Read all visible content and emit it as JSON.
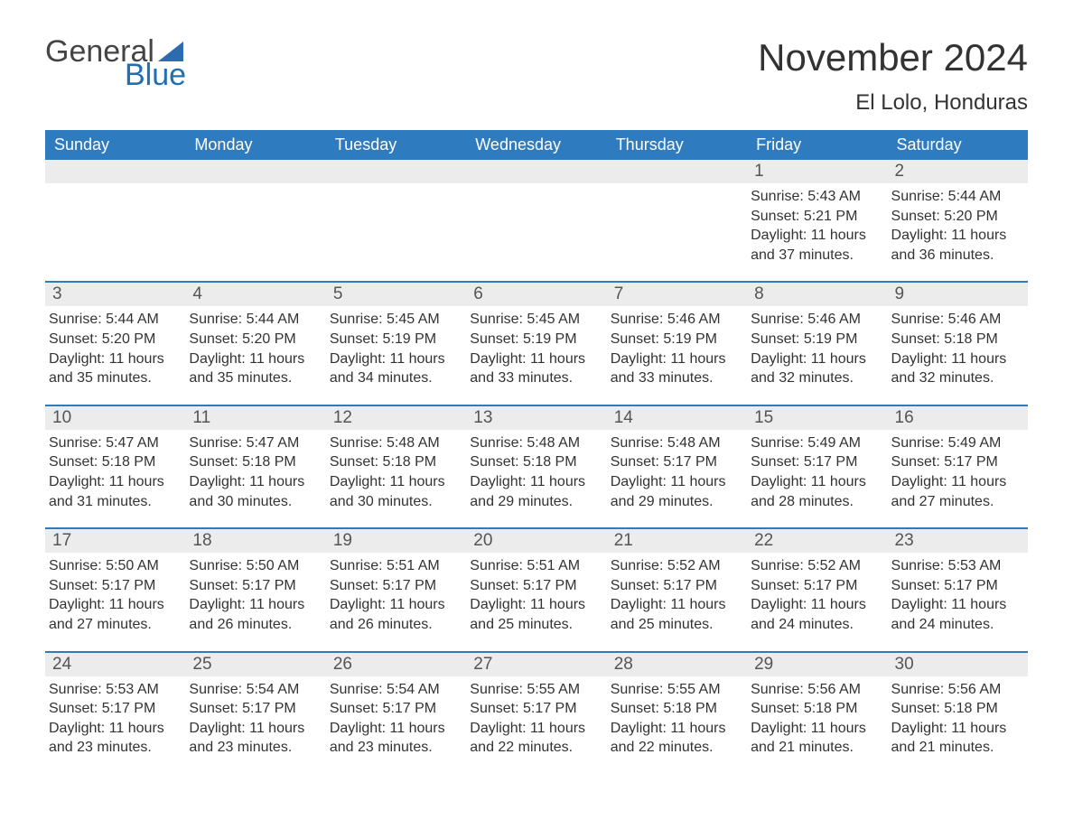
{
  "logo": {
    "word1": "General",
    "word2": "Blue",
    "brand_color": "#2f7bbf",
    "text_color": "#444444"
  },
  "title": "November 2024",
  "location": "El Lolo, Honduras",
  "colors": {
    "header_bg": "#2f7bbf",
    "header_text": "#ffffff",
    "day_num_bg": "#ececec",
    "week_border": "#2f7bbf",
    "body_text": "#333333",
    "page_bg": "#ffffff"
  },
  "dow": [
    "Sunday",
    "Monday",
    "Tuesday",
    "Wednesday",
    "Thursday",
    "Friday",
    "Saturday"
  ],
  "weeks": [
    [
      {
        "day": null
      },
      {
        "day": null
      },
      {
        "day": null
      },
      {
        "day": null
      },
      {
        "day": null
      },
      {
        "day": 1,
        "sunrise": "5:43 AM",
        "sunset": "5:21 PM",
        "daylight": "11 hours and 37 minutes."
      },
      {
        "day": 2,
        "sunrise": "5:44 AM",
        "sunset": "5:20 PM",
        "daylight": "11 hours and 36 minutes."
      }
    ],
    [
      {
        "day": 3,
        "sunrise": "5:44 AM",
        "sunset": "5:20 PM",
        "daylight": "11 hours and 35 minutes."
      },
      {
        "day": 4,
        "sunrise": "5:44 AM",
        "sunset": "5:20 PM",
        "daylight": "11 hours and 35 minutes."
      },
      {
        "day": 5,
        "sunrise": "5:45 AM",
        "sunset": "5:19 PM",
        "daylight": "11 hours and 34 minutes."
      },
      {
        "day": 6,
        "sunrise": "5:45 AM",
        "sunset": "5:19 PM",
        "daylight": "11 hours and 33 minutes."
      },
      {
        "day": 7,
        "sunrise": "5:46 AM",
        "sunset": "5:19 PM",
        "daylight": "11 hours and 33 minutes."
      },
      {
        "day": 8,
        "sunrise": "5:46 AM",
        "sunset": "5:19 PM",
        "daylight": "11 hours and 32 minutes."
      },
      {
        "day": 9,
        "sunrise": "5:46 AM",
        "sunset": "5:18 PM",
        "daylight": "11 hours and 32 minutes."
      }
    ],
    [
      {
        "day": 10,
        "sunrise": "5:47 AM",
        "sunset": "5:18 PM",
        "daylight": "11 hours and 31 minutes."
      },
      {
        "day": 11,
        "sunrise": "5:47 AM",
        "sunset": "5:18 PM",
        "daylight": "11 hours and 30 minutes."
      },
      {
        "day": 12,
        "sunrise": "5:48 AM",
        "sunset": "5:18 PM",
        "daylight": "11 hours and 30 minutes."
      },
      {
        "day": 13,
        "sunrise": "5:48 AM",
        "sunset": "5:18 PM",
        "daylight": "11 hours and 29 minutes."
      },
      {
        "day": 14,
        "sunrise": "5:48 AM",
        "sunset": "5:17 PM",
        "daylight": "11 hours and 29 minutes."
      },
      {
        "day": 15,
        "sunrise": "5:49 AM",
        "sunset": "5:17 PM",
        "daylight": "11 hours and 28 minutes."
      },
      {
        "day": 16,
        "sunrise": "5:49 AM",
        "sunset": "5:17 PM",
        "daylight": "11 hours and 27 minutes."
      }
    ],
    [
      {
        "day": 17,
        "sunrise": "5:50 AM",
        "sunset": "5:17 PM",
        "daylight": "11 hours and 27 minutes."
      },
      {
        "day": 18,
        "sunrise": "5:50 AM",
        "sunset": "5:17 PM",
        "daylight": "11 hours and 26 minutes."
      },
      {
        "day": 19,
        "sunrise": "5:51 AM",
        "sunset": "5:17 PM",
        "daylight": "11 hours and 26 minutes."
      },
      {
        "day": 20,
        "sunrise": "5:51 AM",
        "sunset": "5:17 PM",
        "daylight": "11 hours and 25 minutes."
      },
      {
        "day": 21,
        "sunrise": "5:52 AM",
        "sunset": "5:17 PM",
        "daylight": "11 hours and 25 minutes."
      },
      {
        "day": 22,
        "sunrise": "5:52 AM",
        "sunset": "5:17 PM",
        "daylight": "11 hours and 24 minutes."
      },
      {
        "day": 23,
        "sunrise": "5:53 AM",
        "sunset": "5:17 PM",
        "daylight": "11 hours and 24 minutes."
      }
    ],
    [
      {
        "day": 24,
        "sunrise": "5:53 AM",
        "sunset": "5:17 PM",
        "daylight": "11 hours and 23 minutes."
      },
      {
        "day": 25,
        "sunrise": "5:54 AM",
        "sunset": "5:17 PM",
        "daylight": "11 hours and 23 minutes."
      },
      {
        "day": 26,
        "sunrise": "5:54 AM",
        "sunset": "5:17 PM",
        "daylight": "11 hours and 23 minutes."
      },
      {
        "day": 27,
        "sunrise": "5:55 AM",
        "sunset": "5:17 PM",
        "daylight": "11 hours and 22 minutes."
      },
      {
        "day": 28,
        "sunrise": "5:55 AM",
        "sunset": "5:18 PM",
        "daylight": "11 hours and 22 minutes."
      },
      {
        "day": 29,
        "sunrise": "5:56 AM",
        "sunset": "5:18 PM",
        "daylight": "11 hours and 21 minutes."
      },
      {
        "day": 30,
        "sunrise": "5:56 AM",
        "sunset": "5:18 PM",
        "daylight": "11 hours and 21 minutes."
      }
    ]
  ],
  "labels": {
    "sunrise": "Sunrise:",
    "sunset": "Sunset:",
    "daylight": "Daylight:"
  }
}
